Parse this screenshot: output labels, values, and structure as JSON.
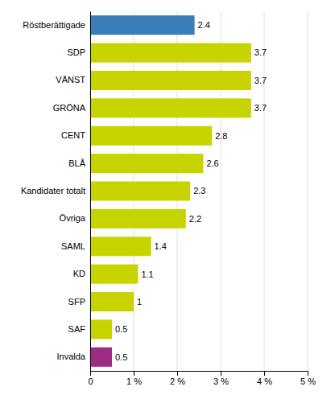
{
  "chart_data": {
    "type": "bar",
    "orientation": "horizontal",
    "categories": [
      "Röstberättigade",
      "SDP",
      "VÄNST",
      "GRÖNA",
      "CENT",
      "BLÅ",
      "Kandidater totalt",
      "Övriga",
      "SAML",
      "KD",
      "SFP",
      "SAF",
      "Invalda"
    ],
    "values": [
      2.4,
      3.7,
      3.7,
      3.7,
      2.8,
      2.6,
      2.3,
      2.2,
      1.4,
      1.1,
      1.0,
      0.5,
      0.5
    ],
    "colors": [
      "#3a7eba",
      "#c8d400",
      "#c8d400",
      "#c8d400",
      "#c8d400",
      "#c8d400",
      "#c8d400",
      "#c8d400",
      "#c8d400",
      "#c8d400",
      "#c8d400",
      "#c8d400",
      "#9b2d82"
    ],
    "xlim": [
      0,
      5
    ],
    "xticks": [
      0,
      {
        "value": 1,
        "label": "1 %"
      },
      {
        "value": 2,
        "label": "2 %"
      },
      {
        "value": 3,
        "label": "3 %"
      },
      {
        "value": 4,
        "label": "4 %"
      },
      {
        "value": 5,
        "label": "5 %"
      }
    ],
    "data_labels": true,
    "grid": true
  }
}
